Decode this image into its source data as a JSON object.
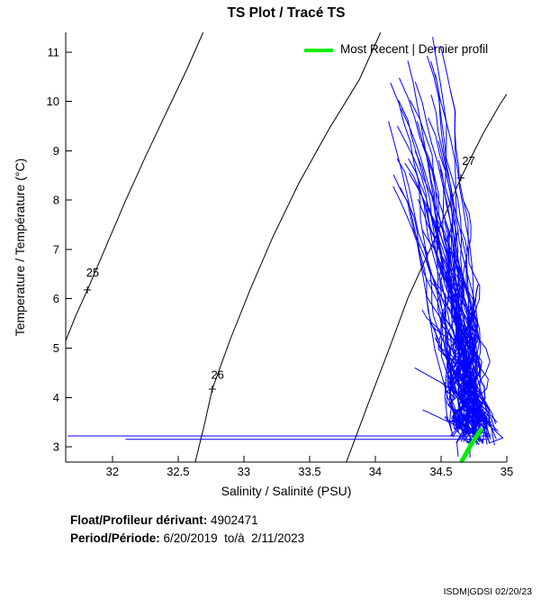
{
  "chart_data": {
    "type": "line",
    "title": "TS Plot / Tracé TS",
    "xlabel": "Salinity / Salinité (PSU)",
    "ylabel": "Temperature / Température (°C)",
    "xlim": [
      31.645,
      35.0
    ],
    "ylim": [
      2.69,
      11.4
    ],
    "x_ticks": [
      "32",
      "32.5",
      "33",
      "33.5",
      "34",
      "34.5",
      "35"
    ],
    "x_tick_values": [
      32,
      32.5,
      33,
      33.5,
      34,
      34.5,
      35
    ],
    "y_ticks": [
      "3",
      "4",
      "5",
      "6",
      "7",
      "8",
      "9",
      "10",
      "11"
    ],
    "y_tick_values": [
      3,
      4,
      5,
      6,
      7,
      8,
      9,
      10,
      11
    ],
    "grid": false,
    "legend_label": "Most Recent | Dernier profil",
    "legend_position": "top-right-inside",
    "profile_color": "#0000ff",
    "most_recent_color": "#00ee00",
    "contour_color": "#000000",
    "density_contours": [
      {
        "label": "25",
        "label_pos": [
          31.85,
          6.45
        ],
        "marker_pos": [
          31.81,
          6.18
        ],
        "points": [
          [
            31.645,
            5.15
          ],
          [
            31.72,
            5.65
          ],
          [
            31.81,
            6.18
          ],
          [
            31.95,
            7.05
          ],
          [
            32.1,
            7.99
          ],
          [
            32.26,
            8.93
          ],
          [
            32.42,
            9.83
          ],
          [
            32.57,
            10.67
          ],
          [
            32.69,
            11.4
          ]
        ]
      },
      {
        "label": "26",
        "label_pos": [
          32.8,
          4.38
        ],
        "marker_pos": [
          32.76,
          4.17
        ],
        "points": [
          [
            32.63,
            2.69
          ],
          [
            32.7,
            3.45
          ],
          [
            32.76,
            4.17
          ],
          [
            32.9,
            5.2
          ],
          [
            33.05,
            6.2
          ],
          [
            33.22,
            7.25
          ],
          [
            33.42,
            8.35
          ],
          [
            33.65,
            9.45
          ],
          [
            33.88,
            10.45
          ],
          [
            34.04,
            11.4
          ]
        ]
      },
      {
        "label": "27",
        "label_pos": [
          34.71,
          8.72
        ],
        "marker_pos": [
          34.65,
          8.45
        ],
        "points": [
          [
            33.78,
            2.69
          ],
          [
            33.95,
            3.9
          ],
          [
            34.1,
            4.95
          ],
          [
            34.25,
            6.03
          ],
          [
            34.45,
            7.2
          ],
          [
            34.65,
            8.45
          ],
          [
            34.82,
            9.35
          ],
          [
            34.95,
            9.95
          ],
          [
            35.0,
            10.15
          ]
        ]
      }
    ],
    "surface_lines": [
      {
        "T": 3.22,
        "S": [
          31.66,
          34.88
        ]
      },
      {
        "T": 3.15,
        "S": [
          32.1,
          34.86
        ]
      }
    ],
    "most_recent_profile": [
      [
        34.66,
        2.72
      ],
      [
        34.69,
        2.86
      ],
      [
        34.73,
        3.05
      ],
      [
        34.77,
        3.22
      ],
      [
        34.8,
        3.34
      ]
    ],
    "profile_cloud": {
      "note": "approx. 80 Argo float TS profiles; tops fan between S 34.1-34.6 at T 8-11.4, converging to dense core S 34.55-34.88 below T 7, terminating near S 34.6-34.86, T 3.0-3.6",
      "groups": [
        {
          "count": 30,
          "seed": 42,
          "top_T": [
            8.0,
            11.38
          ],
          "top_S": [
            34.12,
            34.58
          ],
          "bottom_T": [
            3.0,
            3.55
          ],
          "bottom_S": [
            34.6,
            34.86
          ],
          "wiggle": 0.05,
          "width": 1
        },
        {
          "count": 26,
          "seed": 77,
          "top_T": [
            5.2,
            8.5
          ],
          "top_S": [
            34.3,
            34.68
          ],
          "bottom_T": [
            3.0,
            3.5
          ],
          "bottom_S": [
            34.62,
            34.85
          ],
          "wiggle": 0.09,
          "width": 1
        },
        {
          "count": 24,
          "seed": 9,
          "top_T": [
            3.6,
            6.5
          ],
          "top_S": [
            34.5,
            34.78
          ],
          "bottom_T": [
            3.05,
            3.5
          ],
          "bottom_S": [
            34.63,
            34.85
          ],
          "wiggle": 0.06,
          "width": 1.3
        }
      ]
    },
    "feature_lines": [
      [
        [
          34.84,
          3.5
        ],
        [
          34.97,
          3.18
        ],
        [
          34.87,
          3.08
        ],
        [
          34.82,
          3.4
        ]
      ],
      [
        [
          34.36,
          3.75
        ],
        [
          34.6,
          3.45
        ],
        [
          34.72,
          3.3
        ]
      ],
      [
        [
          34.3,
          4.6
        ],
        [
          34.5,
          4.3
        ],
        [
          34.66,
          4.0
        ]
      ],
      [
        [
          34.1,
          9.6
        ],
        [
          34.2,
          8.6
        ],
        [
          34.3,
          7.4
        ],
        [
          34.38,
          6.2
        ],
        [
          34.45,
          5.0
        ],
        [
          34.55,
          4.0
        ],
        [
          34.65,
          3.4
        ]
      ],
      [
        [
          34.45,
          5.4
        ],
        [
          34.6,
          5.1
        ]
      ],
      [
        [
          34.72,
          3.2
        ],
        [
          34.72,
          2.78
        ]
      ],
      [
        [
          34.62,
          3.1
        ],
        [
          34.63,
          2.8
        ]
      ]
    ]
  },
  "footer": {
    "float_label": "Float/Profileur dérivant:",
    "float_value": " 4902471",
    "period_label": "Period/Période:",
    "period_value": " 6/20/2019  to/à  2/11/2023"
  },
  "watermark": {
    "text": "ISDM|GDSI 02/20/23"
  }
}
